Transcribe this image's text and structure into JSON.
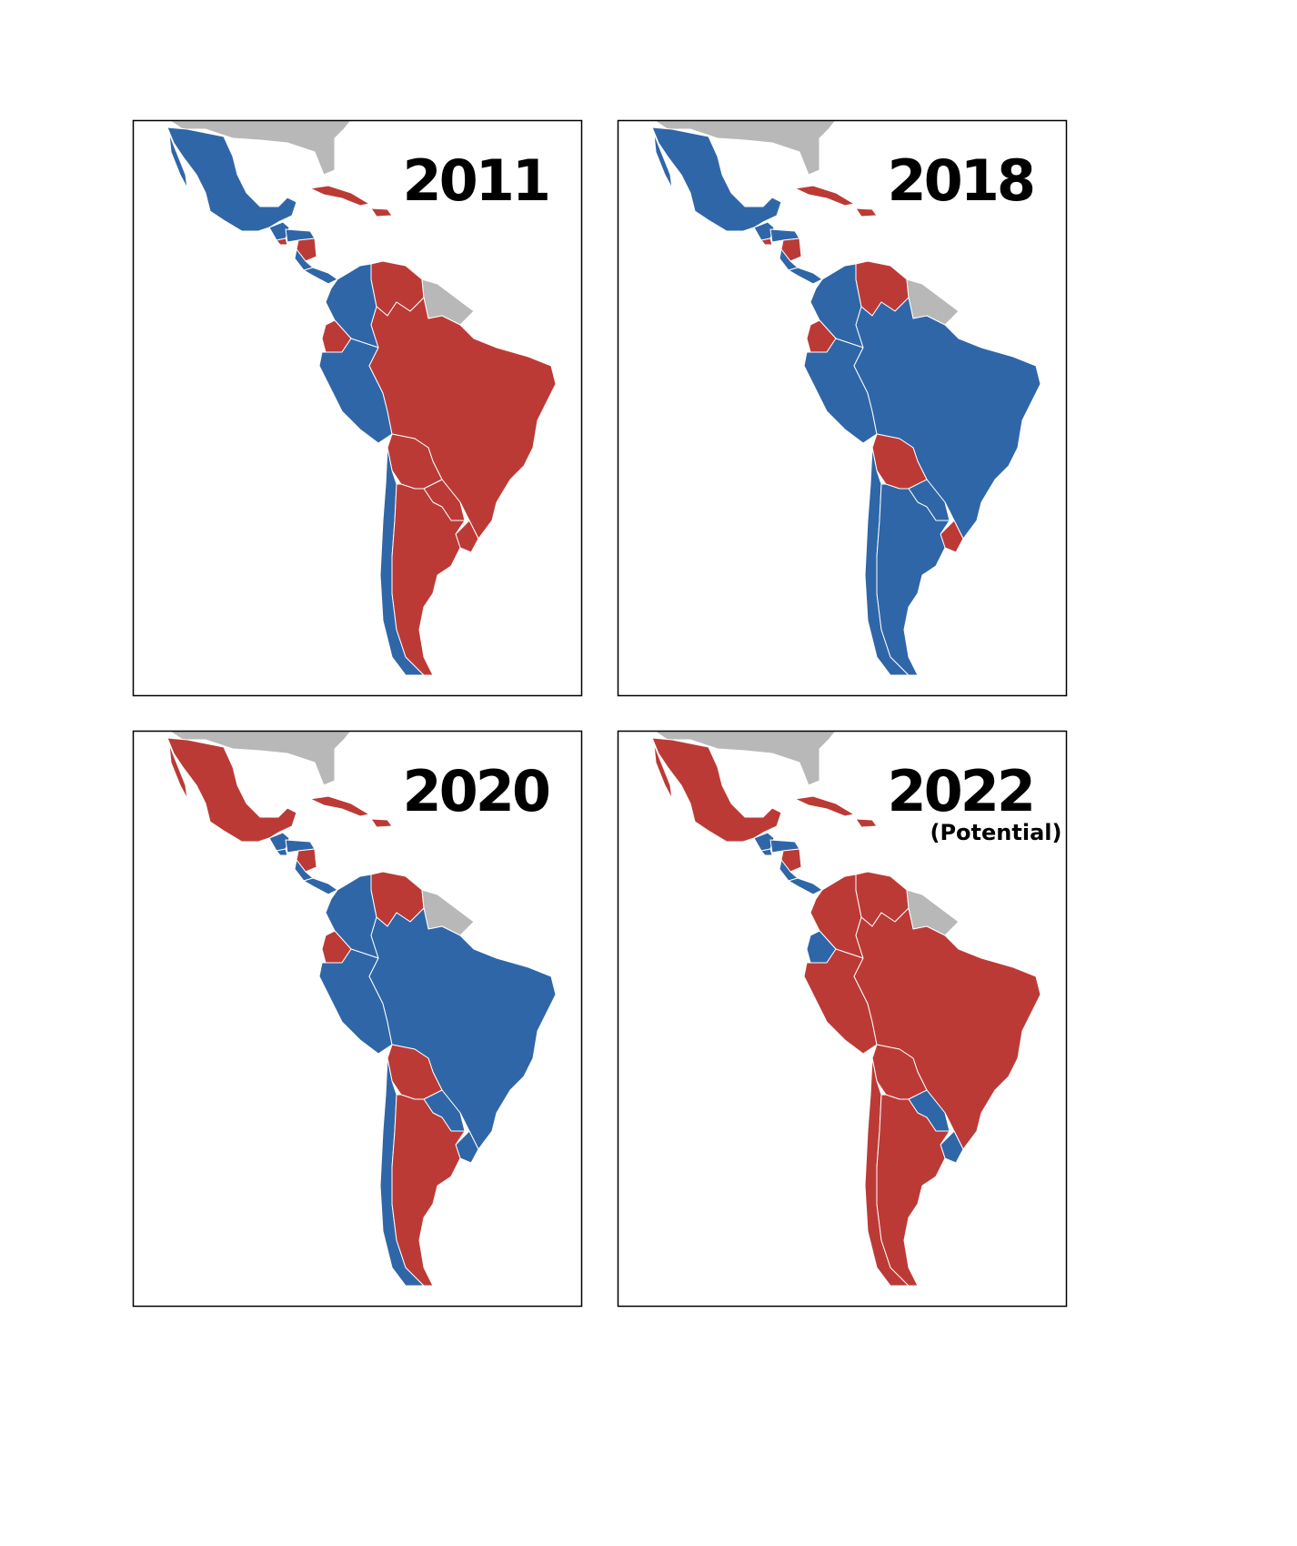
{
  "panels": [
    {
      "title": "2011"
    },
    {
      "title": "2018"
    },
    {
      "title": "2020"
    },
    {
      "title": "2022",
      "subtitle": "(Potential)"
    }
  ]
}
